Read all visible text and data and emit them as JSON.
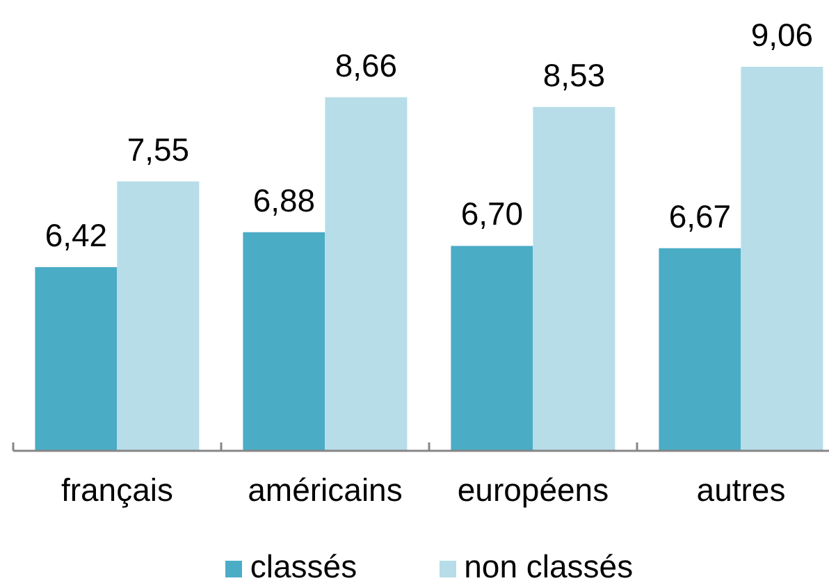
{
  "chart_data": {
    "type": "bar",
    "categories": [
      "français",
      "américains",
      "européens",
      "autres"
    ],
    "series": [
      {
        "name": "classés",
        "color": "#4bacc6",
        "values": [
          6.42,
          6.88,
          6.7,
          6.67
        ],
        "value_labels": [
          "6,42",
          "6,88",
          "6,70",
          "6,67"
        ]
      },
      {
        "name": "non classés",
        "color": "#b7dde8",
        "values": [
          7.55,
          8.66,
          8.53,
          9.06
        ],
        "value_labels": [
          "7,55",
          "8,66",
          "8,53",
          "9,06"
        ]
      }
    ],
    "ylim": [
      4,
      9.06
    ],
    "legend": "bottom",
    "tick_labels": "x"
  }
}
